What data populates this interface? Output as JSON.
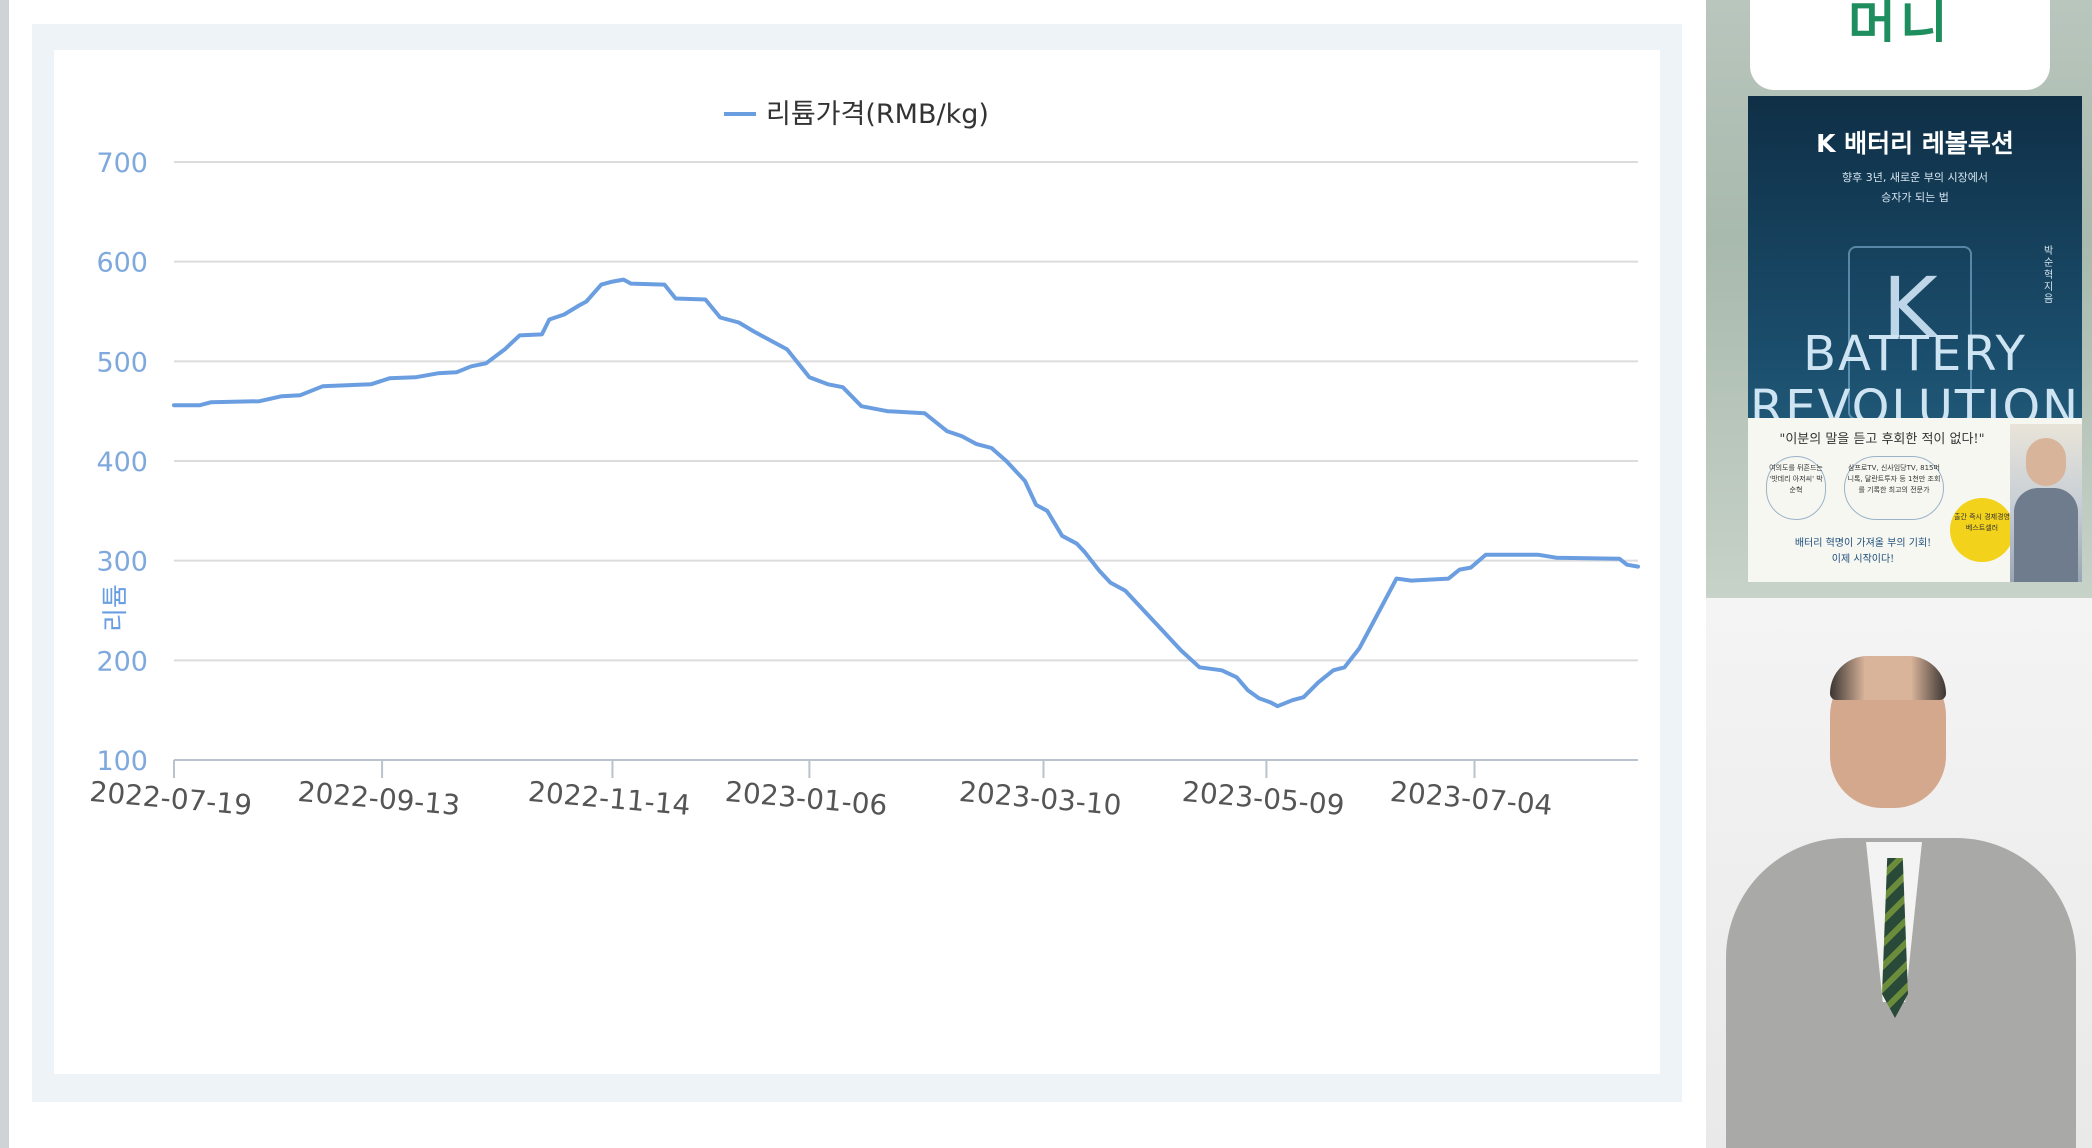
{
  "chart_data": {
    "type": "line",
    "title": "",
    "legend": "top-center",
    "ylabel": "리튬",
    "ylim": [
      100,
      700
    ],
    "yticks": [
      100,
      200,
      300,
      400,
      500,
      600,
      700
    ],
    "xtick_labels": [
      "2022-07-19",
      "2022-09-13",
      "2022-11-14",
      "2023-01-06",
      "2023-03-10",
      "2023-05-09",
      "2023-07-04"
    ],
    "series": [
      {
        "name": "리튬가격(RMB/kg)",
        "color": "#6a9ee0",
        "points": [
          [
            "2022-07-19",
            456
          ],
          [
            "2022-07-26",
            456
          ],
          [
            "2022-07-29",
            459
          ],
          [
            "2022-08-11",
            460
          ],
          [
            "2022-08-17",
            465
          ],
          [
            "2022-08-22",
            466
          ],
          [
            "2022-08-28",
            475
          ],
          [
            "2022-09-10",
            477
          ],
          [
            "2022-09-15",
            483
          ],
          [
            "2022-09-22",
            484
          ],
          [
            "2022-09-28",
            488
          ],
          [
            "2022-10-03",
            489
          ],
          [
            "2022-10-07",
            495
          ],
          [
            "2022-10-11",
            498
          ],
          [
            "2022-10-16",
            512
          ],
          [
            "2022-10-20",
            526
          ],
          [
            "2022-10-26",
            527
          ],
          [
            "2022-10-28",
            542
          ],
          [
            "2022-11-01",
            547
          ],
          [
            "2022-11-05",
            556
          ],
          [
            "2022-11-07",
            560
          ],
          [
            "2022-11-11",
            577
          ],
          [
            "2022-11-14",
            580
          ],
          [
            "2022-11-17",
            582
          ],
          [
            "2022-11-19",
            578
          ],
          [
            "2022-11-28",
            577
          ],
          [
            "2022-12-01",
            563
          ],
          [
            "2022-12-09",
            562
          ],
          [
            "2022-12-13",
            544
          ],
          [
            "2022-12-18",
            539
          ],
          [
            "2022-12-22",
            530
          ],
          [
            "2022-12-27",
            520
          ],
          [
            "2022-12-31",
            512
          ],
          [
            "2023-01-06",
            484
          ],
          [
            "2023-01-11",
            477
          ],
          [
            "2023-01-15",
            474
          ],
          [
            "2023-01-20",
            455
          ],
          [
            "2023-01-27",
            450
          ],
          [
            "2023-02-06",
            448
          ],
          [
            "2023-02-12",
            430
          ],
          [
            "2023-02-16",
            425
          ],
          [
            "2023-02-20",
            417
          ],
          [
            "2023-02-24",
            413
          ],
          [
            "2023-02-28",
            400
          ],
          [
            "2023-03-05",
            380
          ],
          [
            "2023-03-08",
            356
          ],
          [
            "2023-03-11",
            350
          ],
          [
            "2023-03-15",
            325
          ],
          [
            "2023-03-19",
            317
          ],
          [
            "2023-03-21",
            309
          ],
          [
            "2023-03-25",
            290
          ],
          [
            "2023-03-28",
            278
          ],
          [
            "2023-04-01",
            270
          ],
          [
            "2023-04-06",
            250
          ],
          [
            "2023-04-11",
            230
          ],
          [
            "2023-04-16",
            210
          ],
          [
            "2023-04-21",
            193
          ],
          [
            "2023-04-27",
            190
          ],
          [
            "2023-05-01",
            183
          ],
          [
            "2023-05-04",
            170
          ],
          [
            "2023-05-07",
            162
          ],
          [
            "2023-05-10",
            158
          ],
          [
            "2023-05-12",
            154
          ],
          [
            "2023-05-16",
            160
          ],
          [
            "2023-05-19",
            163
          ],
          [
            "2023-05-23",
            178
          ],
          [
            "2023-05-27",
            190
          ],
          [
            "2023-05-30",
            193
          ],
          [
            "2023-06-03",
            212
          ],
          [
            "2023-06-07",
            240
          ],
          [
            "2023-06-13",
            282
          ],
          [
            "2023-06-17",
            280
          ],
          [
            "2023-06-27",
            282
          ],
          [
            "2023-06-30",
            291
          ],
          [
            "2023-07-03",
            293
          ],
          [
            "2023-07-07",
            306
          ],
          [
            "2023-07-21",
            306
          ],
          [
            "2023-07-26",
            303
          ],
          [
            "2023-08-12",
            302
          ],
          [
            "2023-08-14",
            296
          ],
          [
            "2023-08-17",
            294
          ]
        ]
      }
    ]
  },
  "sidebar": {
    "channel_logo": "머니",
    "book": {
      "title": "K 배터리 레볼루션",
      "subtitle_line1": "향후 3년, 새로운 부의 시장에서",
      "subtitle_line2": "승자가 되는 법",
      "author": "박순혁 지음",
      "letter": "K",
      "en_line1": "BATTERY",
      "en_line2": "REVOLUTION",
      "quote": "\"이분의 말을 듣고 후회한 적이 없다!\"",
      "badge1": "여의도를 뒤흔드는 '밧데리 아저씨' 박순혁",
      "badge2": "삼프로TV, 신사임당TV, 815머니톡, 달란트투자 등 1천만 조회를 기록한 최고의 전문가",
      "cta_line1": "배터리 혁명이 가져올 부의 기회!",
      "cta_line2": "이제 시작이다!",
      "seal": "출간 즉시 경제경영 베스트셀러"
    }
  }
}
